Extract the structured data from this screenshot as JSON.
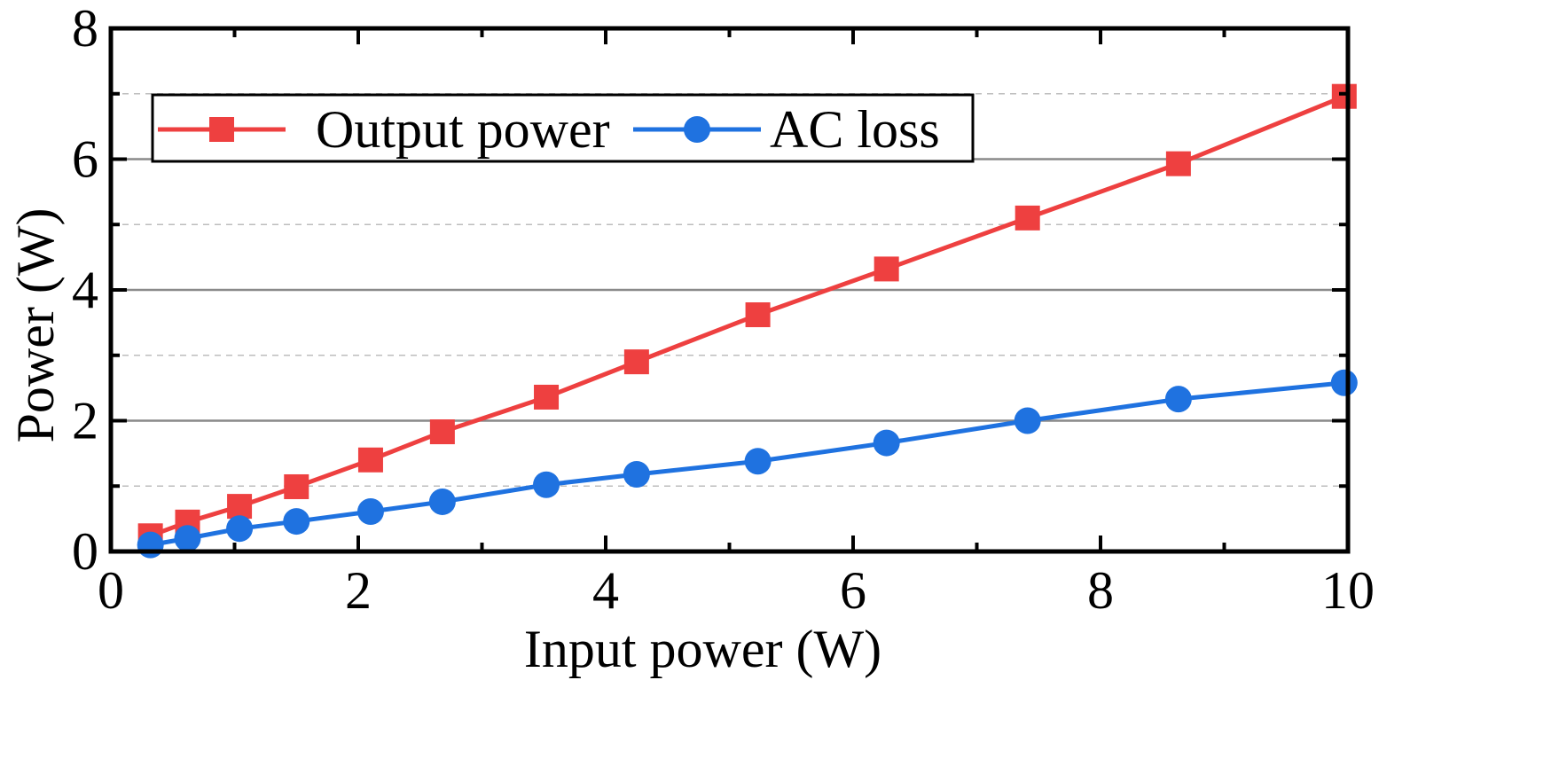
{
  "chart_data": {
    "type": "line",
    "xlabel": "Input power (W)",
    "ylabel": "Power (W)",
    "xlim": [
      0,
      10
    ],
    "ylim": [
      0,
      8
    ],
    "x_ticks": [
      "0",
      "2",
      "4",
      "6",
      "8",
      "10"
    ],
    "y_ticks": [
      "0",
      "2",
      "4",
      "6",
      "8"
    ],
    "grid": {
      "major_y": [
        2,
        4,
        6
      ],
      "minor_y": [
        1,
        3,
        5,
        7
      ]
    },
    "legend_position": "top-left",
    "series": [
      {
        "name": "Output power",
        "marker": "square",
        "color": "#ee4040",
        "x": [
          0.32,
          0.62,
          1.04,
          1.5,
          2.1,
          2.68,
          3.52,
          4.25,
          5.23,
          6.27,
          7.41,
          8.63,
          9.97
        ],
        "y": [
          0.24,
          0.45,
          0.69,
          0.99,
          1.4,
          1.83,
          2.36,
          2.9,
          3.62,
          4.32,
          5.1,
          5.93,
          6.96
        ]
      },
      {
        "name": "AC loss",
        "marker": "circle",
        "color": "#1f72e0",
        "x": [
          0.32,
          0.62,
          1.04,
          1.5,
          2.1,
          2.68,
          3.52,
          4.25,
          5.23,
          6.27,
          7.41,
          8.63,
          9.97
        ],
        "y": [
          0.1,
          0.2,
          0.35,
          0.46,
          0.61,
          0.76,
          1.02,
          1.18,
          1.38,
          1.66,
          2.0,
          2.33,
          2.58
        ]
      }
    ]
  }
}
